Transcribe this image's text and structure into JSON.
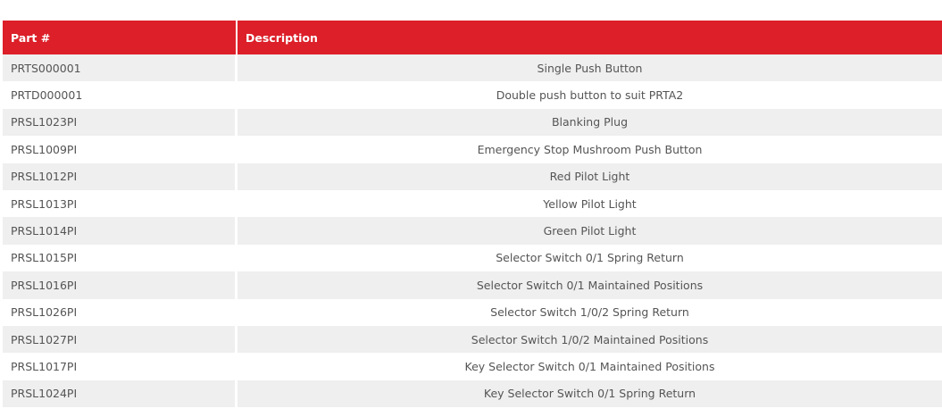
{
  "table": {
    "columns": [
      "Part #",
      "Description"
    ],
    "rows": [
      [
        "PRTS000001",
        "Single Push Button"
      ],
      [
        "PRTD000001",
        "Double push button to suit PRTA2"
      ],
      [
        "PRSL1023PI",
        "Blanking Plug"
      ],
      [
        "PRSL1009PI",
        "Emergency Stop Mushroom Push Button"
      ],
      [
        "PRSL1012PI",
        "Red Pilot Light"
      ],
      [
        "PRSL1013PI",
        "Yellow Pilot Light"
      ],
      [
        "PRSL1014PI",
        "Green Pilot Light"
      ],
      [
        "PRSL1015PI",
        "Selector Switch 0/1 Spring Return"
      ],
      [
        "PRSL1016PI",
        "Selector Switch 0/1 Maintained Positions"
      ],
      [
        "PRSL1026PI",
        "Selector Switch 1/0/2 Spring Return"
      ],
      [
        "PRSL1027PI",
        "Selector Switch 1/0/2 Maintained Positions"
      ],
      [
        "PRSL1017PI",
        "Key Selector Switch 0/1 Maintained Positions"
      ],
      [
        "PRSL1024PI",
        "Key Selector Switch 0/1 Spring Return"
      ]
    ]
  }
}
